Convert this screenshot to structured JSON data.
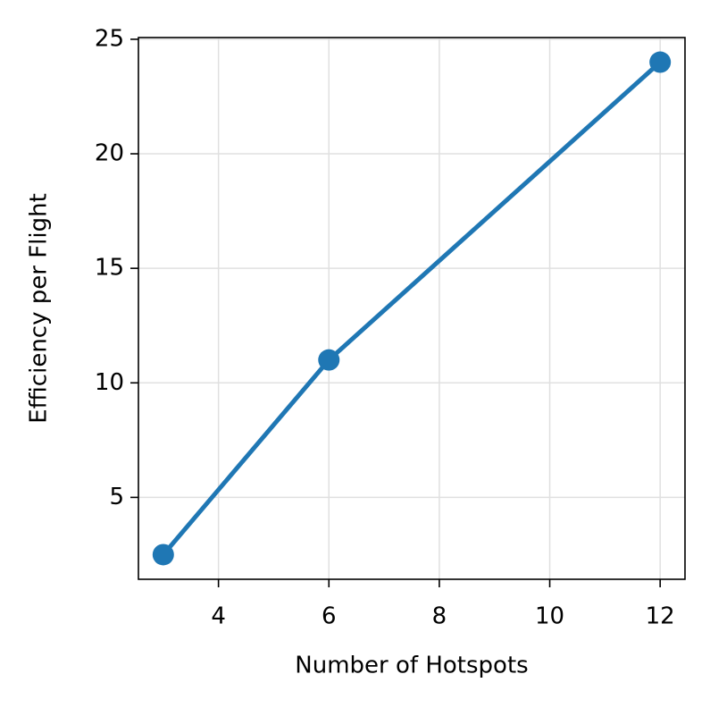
{
  "chart_data": {
    "type": "line",
    "x_label": "Number of Hotspots",
    "y_label": "Efficiency per Flight",
    "x": [
      3,
      6,
      12
    ],
    "series": [
      {
        "color": "#1f77b4",
        "values": [
          2.5,
          11,
          24
        ]
      }
    ],
    "xlim": [
      2.55,
      12.45
    ],
    "ylim": [
      1.425,
      25.075
    ],
    "xticks": [
      4,
      6,
      8,
      10,
      12
    ],
    "yticks": [
      5,
      10,
      15,
      20,
      25
    ],
    "grid": true
  }
}
